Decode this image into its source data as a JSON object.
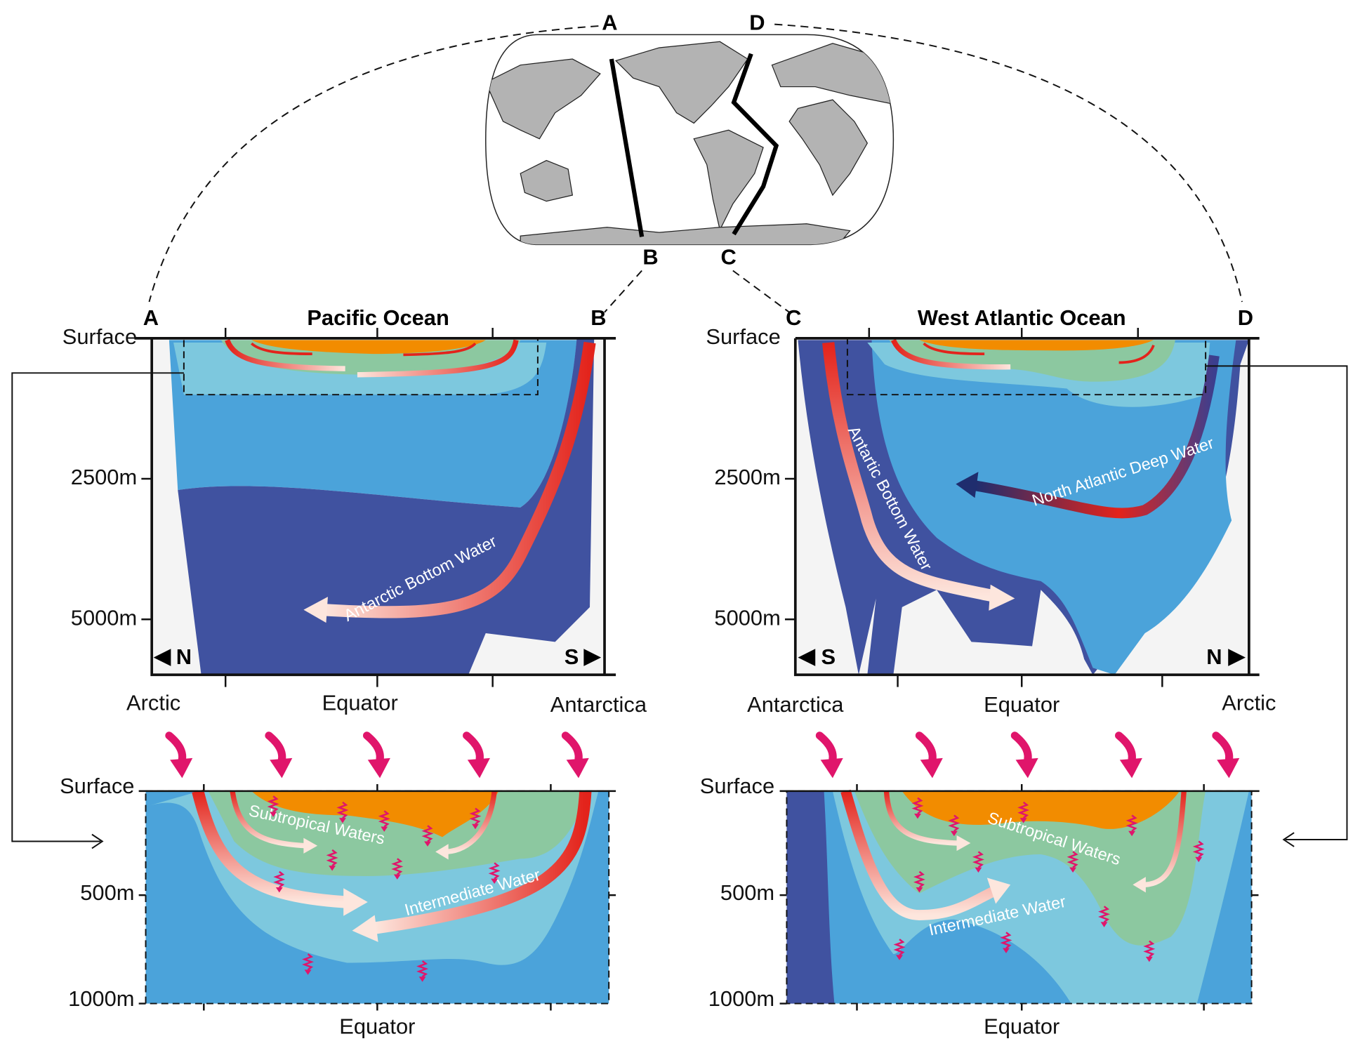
{
  "map": {
    "labels": [
      "A",
      "D",
      "B",
      "C"
    ]
  },
  "panels": [
    {
      "title": "Pacific Ocean",
      "corners": [
        "A",
        "B"
      ],
      "depth_labels": [
        "Surface",
        "2500m",
        "5000m"
      ],
      "directions": [
        "N",
        "S"
      ],
      "regions": [
        "Arctic",
        "Equator",
        "Antarctica"
      ],
      "water_labels": [
        "Antarctic Bottom Water"
      ]
    },
    {
      "title": "West Atlantic Ocean",
      "corners": [
        "C",
        "D"
      ],
      "depth_labels": [
        "Surface",
        "2500m",
        "5000m"
      ],
      "directions": [
        "S",
        "N"
      ],
      "regions": [
        "Antarctica",
        "Equator",
        "Arctic"
      ],
      "water_labels": [
        "Antartic Bottom Water",
        "North Atlantic Deep Water"
      ]
    }
  ],
  "insets": [
    {
      "depth_labels": [
        "Surface",
        "500m",
        "1000m"
      ],
      "region": "Equator",
      "water_labels": [
        "Subtropical Waters",
        "Intermediate Water"
      ]
    },
    {
      "depth_labels": [
        "Surface",
        "500m",
        "1000m"
      ],
      "region": "Equator",
      "water_labels": [
        "Subtropical Waters",
        "Intermediate Water"
      ]
    }
  ]
}
